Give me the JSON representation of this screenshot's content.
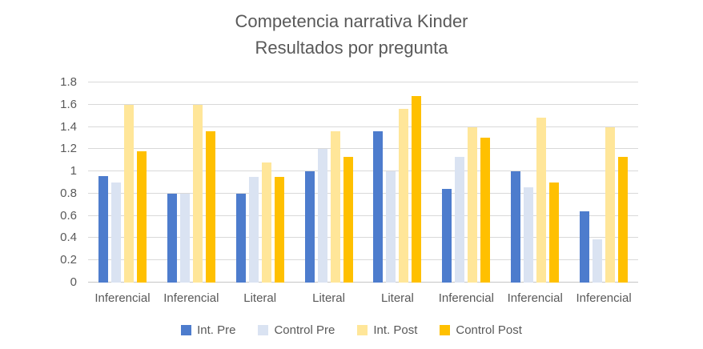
{
  "title": {
    "line1": "Competencia narrativa Kinder",
    "line2": "Resultados por pregunta"
  },
  "chart_data": {
    "type": "bar",
    "title": "Competencia narrativa Kinder - Resultados por pregunta",
    "categories": [
      "Inferencial",
      "Inferencial",
      "Literal",
      "Literal",
      "Literal",
      "Inferencial",
      "Inferencial",
      "Inferencial"
    ],
    "series": [
      {
        "name": "Int. Pre",
        "color": "#4d7ccd",
        "values": [
          0.96,
          0.8,
          0.8,
          1.0,
          1.36,
          0.84,
          1.0,
          0.64
        ]
      },
      {
        "name": "Control Pre",
        "color": "#dae3f2",
        "values": [
          0.9,
          0.8,
          0.95,
          1.2,
          1.0,
          1.13,
          0.86,
          0.39
        ]
      },
      {
        "name": "Int. Post",
        "color": "#ffe699",
        "values": [
          1.6,
          1.6,
          1.08,
          1.36,
          1.56,
          1.4,
          1.48,
          1.4
        ]
      },
      {
        "name": "Control Post",
        "color": "#ffc000",
        "values": [
          1.18,
          1.36,
          0.95,
          1.13,
          1.68,
          1.3,
          0.9,
          1.13
        ]
      }
    ],
    "xlabel": "",
    "ylabel": "",
    "ylim": [
      0,
      1.8
    ],
    "ytick_step": 0.2,
    "yticks": [
      "0",
      "0.2",
      "0.4",
      "0.6",
      "0.8",
      "1",
      "1.2",
      "1.4",
      "1.6",
      "1.8"
    ],
    "grid": true,
    "legend_position": "bottom"
  },
  "colors": {
    "text": "#595959",
    "gridline": "#d9d9d9",
    "background": "#ffffff"
  }
}
